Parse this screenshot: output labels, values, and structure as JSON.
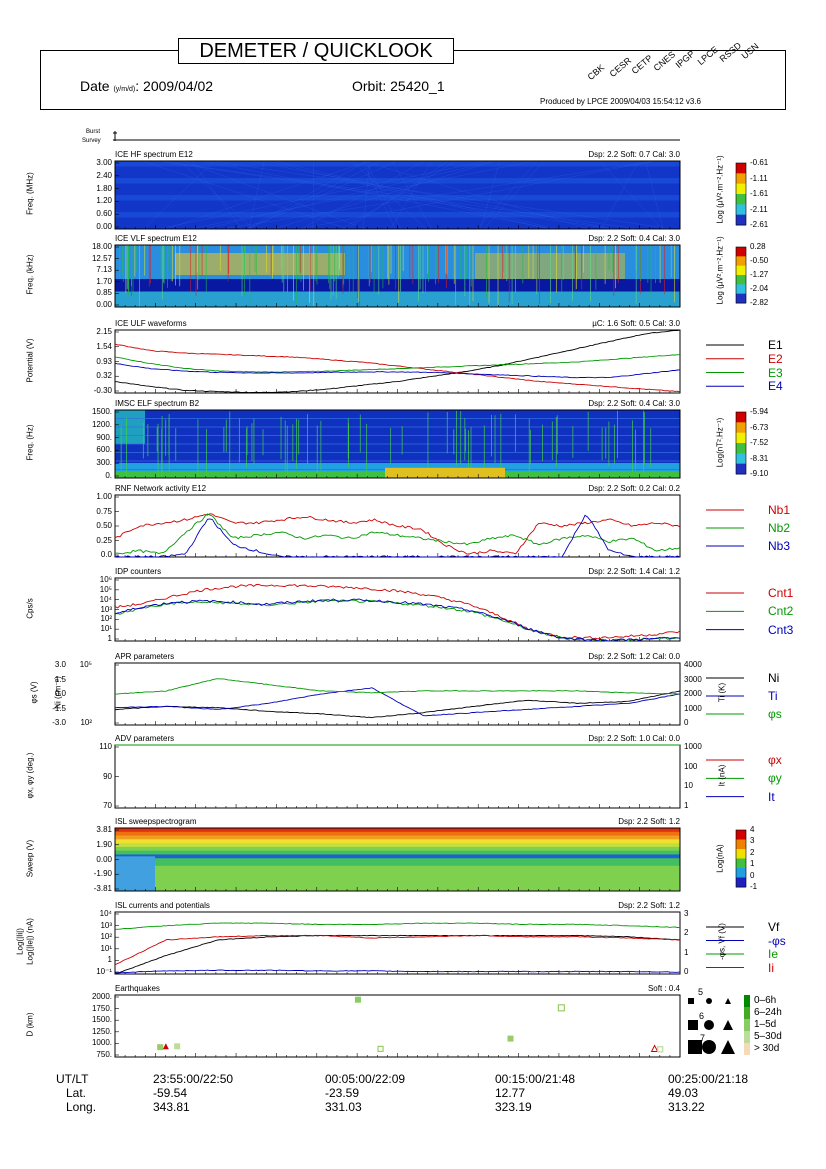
{
  "header": {
    "title": "DEMETER / QUICKLOOK",
    "date_label": "Date",
    "date_sub": "(y/m/d)",
    "date_value": ": 2009/04/02",
    "orbit": "Orbit: 25420_1",
    "produced": "Produced by LPCE  2009/04/03 15:54:12  v3.6",
    "labs": [
      "CBK",
      "CESR",
      "CETP",
      "CNES",
      "IPGP",
      "LPCE",
      "RSSD",
      "USN"
    ]
  },
  "burst": {
    "burst_label": "Burst",
    "survey_label": "Survey"
  },
  "chart_data": [
    {
      "type": "heatmap",
      "title": "ICE HF spectrum  E12",
      "info": "Dsp: 2.2  Soft: 0.7  Cal: 3.0",
      "ylabel": "Freq. (MHz)",
      "yticks": [
        "3.00",
        "2.40",
        "1.80",
        "1.20",
        "0.60",
        "0.00"
      ],
      "colorbar": {
        "label": "Log (µV².m⁻².Hz⁻¹)",
        "ticks": [
          "-0.61",
          "-1.11",
          "-1.61",
          "-2.11",
          "-2.61"
        ]
      }
    },
    {
      "type": "heatmap",
      "title": "ICE VLF spectrum  E12",
      "info": "Dsp: 2.2  Soft: 0.4  Cal: 3.0",
      "ylabel": "Freq. (kHz)",
      "yticks": [
        "18.00",
        "12.57",
        "7.13",
        "1.70",
        "0.85",
        "0.00"
      ],
      "colorbar": {
        "label": "Log (µV².m⁻².Hz⁻¹)",
        "ticks": [
          "0.28",
          "-0.50",
          "-1.27",
          "-2.04",
          "-2.82"
        ]
      }
    },
    {
      "type": "line",
      "title": "ICE ULF waveforms",
      "info": "µC: 1.6  Soft: 0.5  Cal: 3.0",
      "ylabel": "Potential (V)",
      "yticks": [
        "2.15",
        "1.54",
        "0.93",
        "0.32",
        "-0.30"
      ],
      "ylim": [
        -0.3,
        2.15
      ],
      "series": [
        {
          "name": "E1",
          "color": "#000000",
          "values": [
            0.15,
            -0.05,
            -0.2,
            -0.25,
            -0.28,
            -0.25,
            -0.15,
            0,
            0.15,
            0.35,
            0.55,
            0.8,
            1.1,
            1.4,
            1.7,
            2.0,
            2.15
          ]
        },
        {
          "name": "E2",
          "color": "#cc0000",
          "values": [
            1.6,
            1.35,
            1.25,
            1.2,
            1.15,
            1.1,
            1.0,
            0.9,
            0.75,
            0.6,
            0.45,
            0.3,
            0.15,
            0.05,
            -0.05,
            -0.15,
            -0.25
          ]
        },
        {
          "name": "E3",
          "color": "#009900",
          "values": [
            1.1,
            0.85,
            0.65,
            0.55,
            0.52,
            0.52,
            0.55,
            0.6,
            0.65,
            0.7,
            0.75,
            0.8,
            0.85,
            0.9,
            1.0,
            1.1,
            1.2
          ]
        },
        {
          "name": "E4",
          "color": "#0000bb",
          "values": [
            0.85,
            0.65,
            0.55,
            0.5,
            0.48,
            0.48,
            0.5,
            0.52,
            0.52,
            0.5,
            0.45,
            0.4,
            0.35,
            0.3,
            0.3,
            0.45,
            0.6
          ]
        }
      ]
    },
    {
      "type": "heatmap",
      "title": "IMSC ELF spectrum  B2",
      "info": "Dsp: 2.2  Soft: 0.4  Cal: 3.0",
      "ylabel": "Freq. (Hz)",
      "yticks": [
        "1500.",
        "1200.",
        "900.",
        "600.",
        "300.",
        "0."
      ],
      "colorbar": {
        "label": "Log(nT².Hz⁻¹)",
        "ticks": [
          "-5.94",
          "-6.73",
          "-7.52",
          "-8.31",
          "-9.10"
        ]
      }
    },
    {
      "type": "line",
      "title": "RNF Network activity  E12",
      "info": "Dsp: 2.2  Soft: 0.2  Cal: 0.2",
      "yticks": [
        "1.00",
        "0.75",
        "0.50",
        "0.25",
        "0.0"
      ],
      "ylim": [
        0,
        1
      ],
      "series": [
        {
          "name": "Nb1",
          "color": "#cc0000",
          "values": [
            0.3,
            0.5,
            0.55,
            0.6,
            0.7,
            0.55,
            0.55,
            0.6,
            0.65,
            0.6,
            0.55,
            0.6,
            0.5,
            0.45,
            0.2,
            0.05,
            0.1,
            0.05,
            0.55,
            0.5,
            0.55,
            0.6,
            0.5,
            0.55,
            0.5
          ]
        },
        {
          "name": "Nb2",
          "color": "#009900",
          "values": [
            0.05,
            0.1,
            0.05,
            0.4,
            0.7,
            0.3,
            0.35,
            0.4,
            0.3,
            0.35,
            0.3,
            0.4,
            0.35,
            0.3,
            0.25,
            0.2,
            0.3,
            0.35,
            0.2,
            0.3,
            0.35,
            0.25,
            0.3,
            0.1,
            0.15
          ]
        },
        {
          "name": "Nb3",
          "color": "#0000bb",
          "values": [
            0,
            0,
            0,
            0.05,
            0.65,
            0.2,
            0.1,
            0,
            0,
            0,
            0,
            0,
            0,
            0,
            0,
            0,
            0,
            0,
            0,
            0,
            0.7,
            0.1,
            0,
            0,
            0
          ]
        }
      ]
    },
    {
      "type": "line",
      "title": "IDP counters",
      "info": "Dsp: 2.2  Soft: 1.4  Cal: 1.2",
      "ylabel": "Cps/s",
      "yticks": [
        "10⁶",
        "10⁵",
        "10⁴",
        "10³",
        "10²",
        "10¹",
        "1"
      ],
      "log": true,
      "ylim": [
        0,
        6
      ],
      "series": [
        {
          "name": "Cnt1",
          "color": "#cc0000",
          "values": [
            3.2,
            3.6,
            4.3,
            4.9,
            5.2,
            5.3,
            5.3,
            5.2,
            5.1,
            4.9,
            4.6,
            4.1,
            3.4,
            2.3,
            1.0,
            0.4,
            0.3,
            0.4,
            0.6,
            0.9
          ]
        },
        {
          "name": "Cnt2",
          "color": "#009900",
          "values": [
            2.5,
            3.2,
            3.6,
            3.7,
            3.6,
            3.4,
            3.6,
            3.8,
            3.8,
            3.7,
            3.5,
            3.2,
            2.8,
            2.0,
            1.0,
            0.3,
            0.1,
            0.1,
            0.2,
            0.3
          ]
        },
        {
          "name": "Cnt3",
          "color": "#0000bb",
          "values": [
            2.6,
            3.3,
            3.7,
            3.8,
            3.7,
            3.5,
            3.7,
            3.9,
            3.9,
            3.8,
            3.6,
            3.3,
            2.9,
            2.1,
            1.1,
            0.3,
            0.1,
            0.1,
            0.2,
            0.3
          ]
        }
      ]
    },
    {
      "type": "line",
      "title": "APR parameters",
      "info": "Dsp: 2.2  Soft: 1.2  Cal: 0.0",
      "ylabel": "Ni (cm⁻³)",
      "ylabel2": "φs (V)",
      "ylabel_right": "Ti (K)",
      "yticks": [
        "10⁵",
        "10²"
      ],
      "yticks2": [
        "3.0",
        "1.5",
        "0.0",
        "-1.5",
        "-3.0"
      ],
      "yticks_right": [
        "4000",
        "3000",
        "2000",
        "1000",
        "0"
      ],
      "series": [
        {
          "name": "Ni",
          "color": "#000000",
          "values": [
            0.25,
            0.3,
            0.28,
            0.22,
            0.18,
            0.12,
            0.2,
            0.3,
            0.4,
            0.35,
            0.38,
            0.55
          ]
        },
        {
          "name": "Ti",
          "color": "#0000bb",
          "values": [
            0.28,
            0.3,
            0.25,
            0.35,
            0.5,
            0.6,
            0.15,
            0.2,
            0.25,
            0.3,
            0.35,
            0.5
          ]
        },
        {
          "name": "φs",
          "color": "#009900",
          "values": [
            0.5,
            0.55,
            0.75,
            0.65,
            0.55,
            0.52,
            0.55,
            0.55,
            0.55,
            0.55,
            0.52,
            0.5
          ]
        }
      ]
    },
    {
      "type": "line",
      "title": "ADV parameters",
      "info": "Dsp: 2.2  Soft: 1.0  Cal: 0.0",
      "ylabel": "φx, φy (deg.)",
      "ylabel_right": "It (nA)",
      "yticks": [
        "110",
        "90",
        "70"
      ],
      "yticks_right": [
        "1000",
        "100",
        "10",
        "1"
      ],
      "series": [
        {
          "name": "φx",
          "color": "#cc0000",
          "values": [
            94,
            94,
            93,
            93,
            93,
            93,
            93,
            93,
            93,
            93,
            93,
            92
          ]
        },
        {
          "name": "φy",
          "color": "#009900",
          "values": [
            81,
            80,
            80,
            81,
            82,
            80,
            81,
            80,
            81,
            80,
            81,
            79
          ]
        },
        {
          "name": "It",
          "color": "#0000bb",
          "values": []
        }
      ]
    },
    {
      "type": "heatmap",
      "title": "ISL sweepspectrogram",
      "info": "Dsp: 2.2  Soft: 1.2",
      "ylabel": "Sweep (V)",
      "yticks": [
        "3.81",
        "1.90",
        "0.00",
        "-1.90",
        "-3.81"
      ],
      "colorbar": {
        "label": "Log(nA)",
        "ticks": [
          "4",
          "3",
          "2",
          "1",
          "0",
          "-1"
        ]
      }
    },
    {
      "type": "line",
      "title": "ISL currents and potentials",
      "info": "Dsp: 2.2  Soft: 1.2",
      "ylabel": "Log(|Ie|) (nA)",
      "ylabel2": "Log(|Ii|)",
      "ylabel_right": "-φs, Vf (V)",
      "yticks": [
        "10⁴",
        "10³",
        "10²",
        "10¹",
        "1",
        "10⁻¹"
      ],
      "yticks_right": [
        "3",
        "2",
        "1",
        "0"
      ],
      "series": [
        {
          "name": "Vf",
          "color": "#000000",
          "values": [
            0.0,
            0.3,
            0.55,
            0.6,
            0.62,
            0.62,
            0.62,
            0.62,
            0.62,
            0.62,
            0.6,
            0.55
          ]
        },
        {
          "name": "-φs",
          "color": "#0000bb",
          "values": [
            0.02,
            0.05,
            0.06,
            0.06,
            0.05,
            0.05,
            0.04,
            0.04,
            0.04,
            0.04,
            0.04,
            0.03
          ]
        },
        {
          "name": "Ie",
          "color": "#009900",
          "values": [
            0.72,
            0.78,
            0.82,
            0.82,
            0.8,
            0.8,
            0.82,
            0.82,
            0.8,
            0.8,
            0.78,
            0.75
          ]
        },
        {
          "name": "Ii",
          "color": "#cc0000",
          "values": [
            0.15,
            0.55,
            0.6,
            0.62,
            0.62,
            0.58,
            0.6,
            0.62,
            0.6,
            0.6,
            0.58,
            0.55
          ]
        }
      ]
    },
    {
      "type": "scatter",
      "title": "Earthquakes",
      "info": "Soft : 0.4",
      "ylabel": "D  (km)",
      "yticks": [
        "2000.",
        "1750.",
        "1500.",
        "1250.",
        "1000.",
        "750."
      ],
      "ylim": [
        650,
        2100
      ],
      "points": [
        {
          "x": 0.08,
          "y": 880,
          "size": 6,
          "color": "#99cc66",
          "shape": "square"
        },
        {
          "x": 0.09,
          "y": 900,
          "size": 6,
          "color": "#cc0000",
          "shape": "triangle"
        },
        {
          "x": 0.11,
          "y": 900,
          "size": 6,
          "color": "#bbdd99",
          "shape": "square"
        },
        {
          "x": 0.43,
          "y": 1990,
          "size": 6,
          "color": "#88cc66",
          "shape": "square"
        },
        {
          "x": 0.47,
          "y": 840,
          "size": 5,
          "color": "#99cc66",
          "shape": "open"
        },
        {
          "x": 0.7,
          "y": 1080,
          "size": 6,
          "color": "#99cc66",
          "shape": "square"
        },
        {
          "x": 0.79,
          "y": 1800,
          "size": 6,
          "color": "#99cc66",
          "shape": "open"
        },
        {
          "x": 0.955,
          "y": 850,
          "size": 6,
          "color": "#cc0000",
          "shape": "triangle-open"
        },
        {
          "x": 0.965,
          "y": 830,
          "size": 5,
          "color": "#bbdd99",
          "shape": "open"
        }
      ]
    }
  ],
  "eq_legend": {
    "sizes": [
      "5",
      "6",
      "7"
    ],
    "ages": [
      "0–6h",
      "6–24h",
      "1–5d",
      "5–30d",
      "> 30d"
    ],
    "age_colors": [
      "#008800",
      "#44aa22",
      "#88cc66",
      "#bbdd99",
      "#f5d9b8"
    ]
  },
  "bottom": {
    "row_labels": [
      "UT/LT",
      "Lat.",
      "Long."
    ],
    "columns": [
      {
        "time": "23:55:00/22:50",
        "lat": "-59.54",
        "long": "343.81"
      },
      {
        "time": "00:05:00/22:09",
        "lat": "-23.59",
        "long": "331.03"
      },
      {
        "time": "00:15:00/21:48",
        "lat": "12.77",
        "long": "323.19"
      },
      {
        "time": "00:25:00/21:18",
        "lat": "49.03",
        "long": "313.22"
      }
    ]
  }
}
